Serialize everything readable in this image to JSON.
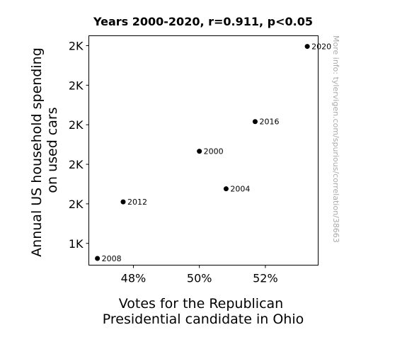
{
  "chart_data": {
    "type": "scatter",
    "title": "Years 2000-2020, r=0.911, p<0.05",
    "xlabel": [
      "Votes for the Republican",
      "Presidential candidate in Ohio"
    ],
    "ylabel": [
      "Annual US household spending",
      "on used cars"
    ],
    "xlim": [
      46.65,
      53.6
    ],
    "ylim": [
      1395,
      1975
    ],
    "x_ticks": [
      {
        "value": 48,
        "label": "48%"
      },
      {
        "value": 50,
        "label": "50%"
      },
      {
        "value": 52,
        "label": "52%"
      }
    ],
    "y_ticks": [
      {
        "value": 1450,
        "label": "1K"
      },
      {
        "value": 1550,
        "label": "2K"
      },
      {
        "value": 1650,
        "label": "2K"
      },
      {
        "value": 1750,
        "label": "2K"
      },
      {
        "value": 1850,
        "label": "2K"
      },
      {
        "value": 1950,
        "label": "2K"
      }
    ],
    "points": [
      {
        "label": "2000",
        "x": 50.0,
        "y": 1683
      },
      {
        "label": "2004",
        "x": 50.81,
        "y": 1588
      },
      {
        "label": "2008",
        "x": 46.91,
        "y": 1412
      },
      {
        "label": "2012",
        "x": 47.69,
        "y": 1555
      },
      {
        "label": "2016",
        "x": 51.69,
        "y": 1758
      },
      {
        "label": "2020",
        "x": 53.27,
        "y": 1948
      }
    ],
    "point_color": "#000000",
    "grid": false,
    "legend": null
  },
  "watermark": "More info: tylervigen.com/spurious/correlation/38663"
}
